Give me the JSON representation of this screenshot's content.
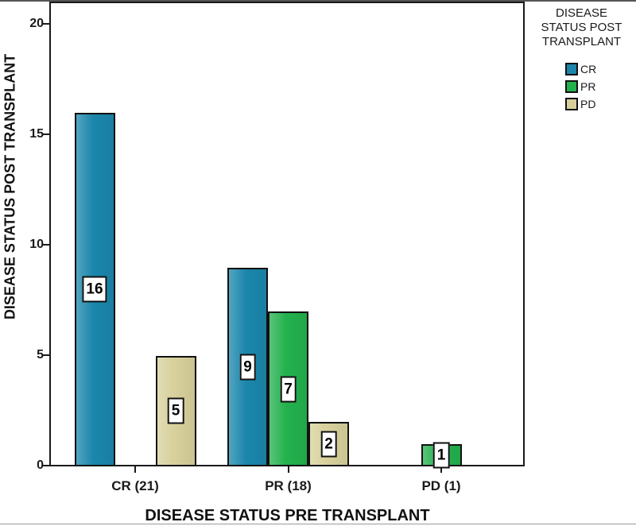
{
  "figure": {
    "xlabel": "DISEASE STATUS PRE TRANSPLANT",
    "ylabel": "DISEASE STATUS POST TRANSPLANT"
  },
  "legend": {
    "title_lines": [
      "DISEASE",
      "STATUS POST",
      "TRANSPLANT"
    ],
    "entries": [
      {
        "label": "CR",
        "color": "#1b86ab"
      },
      {
        "label": "PR",
        "color": "#23b14d"
      },
      {
        "label": "PD",
        "color": "#d7d09b"
      }
    ]
  },
  "chart_data": {
    "type": "bar",
    "categories": [
      "CR (21)",
      "PR (18)",
      "PD (1)"
    ],
    "series": [
      {
        "name": "CR",
        "color": "#1b86ab",
        "values": [
          16,
          9,
          0
        ]
      },
      {
        "name": "PR",
        "color": "#23b14d",
        "values": [
          0,
          7,
          1
        ]
      },
      {
        "name": "PD",
        "color": "#d7d09b",
        "values": [
          5,
          2,
          0
        ]
      }
    ],
    "xlabel": "DISEASE STATUS PRE TRANSPLANT",
    "ylabel": "DISEASE STATUS POST TRANSPLANT",
    "ylim": [
      0,
      20
    ],
    "yticks": [
      0,
      5,
      10,
      15,
      20
    ],
    "bar_value_labels_shown": true,
    "visible_bar_values": [
      16,
      5,
      9,
      7,
      2,
      1
    ],
    "legend_title": "DISEASE STATUS POST TRANSPLANT",
    "legend_position": "top-right",
    "grid": false,
    "colors": {
      "frame": "#1a1a1a",
      "background": "#ffffff"
    }
  }
}
